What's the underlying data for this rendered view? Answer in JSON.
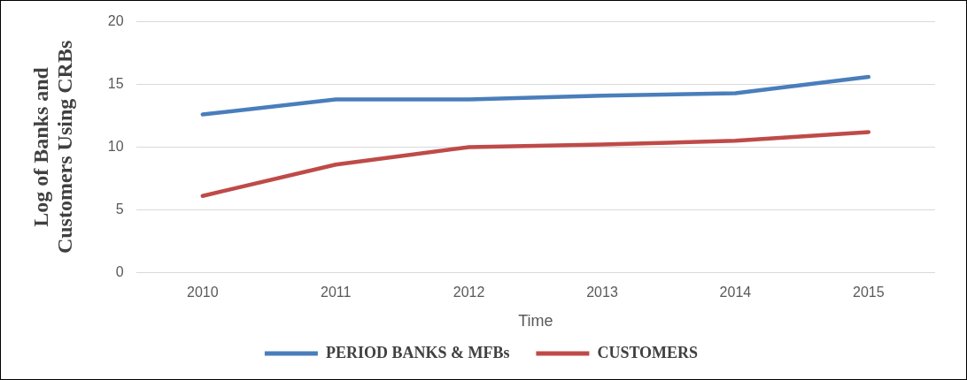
{
  "chart_data": {
    "type": "line",
    "xlabel": "Time",
    "ylabel": "Log of Banks and\nCustomers Using CRBs",
    "categories": [
      "2010",
      "2011",
      "2012",
      "2013",
      "2014",
      "2015"
    ],
    "series": [
      {
        "name": "PERIOD BANKS & MFBs",
        "color": "#4a7ebb",
        "values": [
          12.6,
          13.8,
          13.8,
          14.1,
          14.3,
          15.6
        ]
      },
      {
        "name": "CUSTOMERS",
        "color": "#be4b48",
        "values": [
          6.1,
          8.6,
          10.0,
          10.2,
          10.5,
          11.2
        ]
      }
    ],
    "ylim": [
      0,
      20
    ],
    "yticks": [
      0,
      5,
      10,
      15,
      20
    ],
    "grid": "y",
    "legend": "bottom",
    "marker": "none",
    "line_style": "solid"
  }
}
